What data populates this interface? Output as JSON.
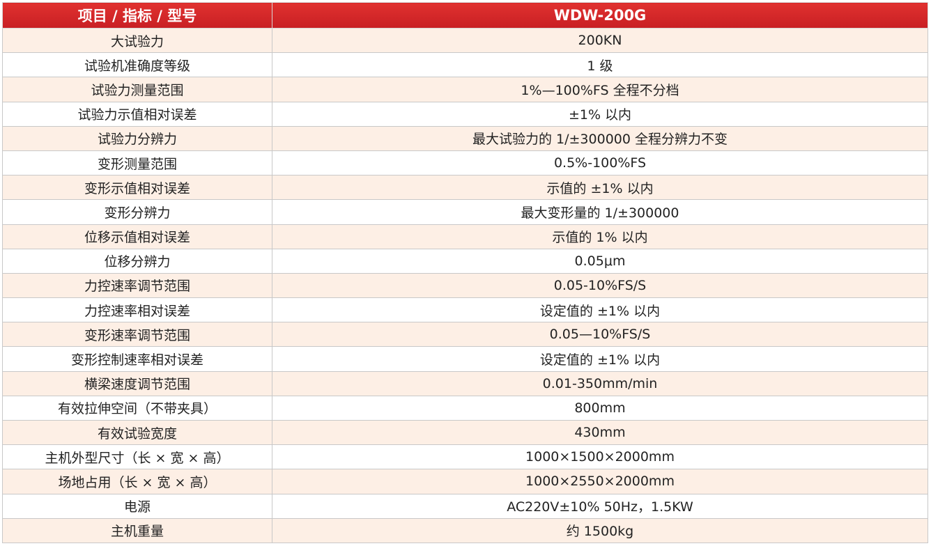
{
  "table": {
    "header": [
      "项目 / 指标 / 型号",
      "WDW-200G"
    ],
    "rows": [
      [
        "大试验力",
        "200KN"
      ],
      [
        "试验机准确度等级",
        "1 级"
      ],
      [
        "试验力测量范围",
        "1%—100%FS 全程不分档"
      ],
      [
        "试验力示值相对误差",
        "±1% 以内"
      ],
      [
        "试验力分辨力",
        "最大试验力的 1/±300000 全程分辨力不变"
      ],
      [
        "变形测量范围",
        "0.5%-100%FS"
      ],
      [
        "变形示值相对误差",
        "示值的 ±1% 以内"
      ],
      [
        "变形分辨力",
        "最大变形量的 1/±300000"
      ],
      [
        "位移示值相对误差",
        "示值的 1% 以内"
      ],
      [
        "位移分辨力",
        "0.05μm"
      ],
      [
        "力控速率调节范围",
        "0.05-10%FS/S"
      ],
      [
        "力控速率相对误差",
        "设定值的 ±1% 以内"
      ],
      [
        "变形速率调节范围",
        "0.05—10%FS/S"
      ],
      [
        "变形控制速率相对误差",
        "设定值的 ±1% 以内"
      ],
      [
        "横梁速度调节范围",
        "0.01-350mm/min"
      ],
      [
        "有效拉伸空间（不带夹具）",
        "800mm"
      ],
      [
        "有效试验宽度",
        "430mm"
      ],
      [
        "主机外型尺寸（长 × 宽 × 高）",
        "1000×1500×2000mm"
      ],
      [
        "场地占用（长 × 宽 × 高）",
        "1000×2550×2000mm"
      ],
      [
        "电源",
        "AC220V±10% 50Hz，1.5KW"
      ],
      [
        "主机重量",
        "约 1500kg"
      ]
    ]
  }
}
